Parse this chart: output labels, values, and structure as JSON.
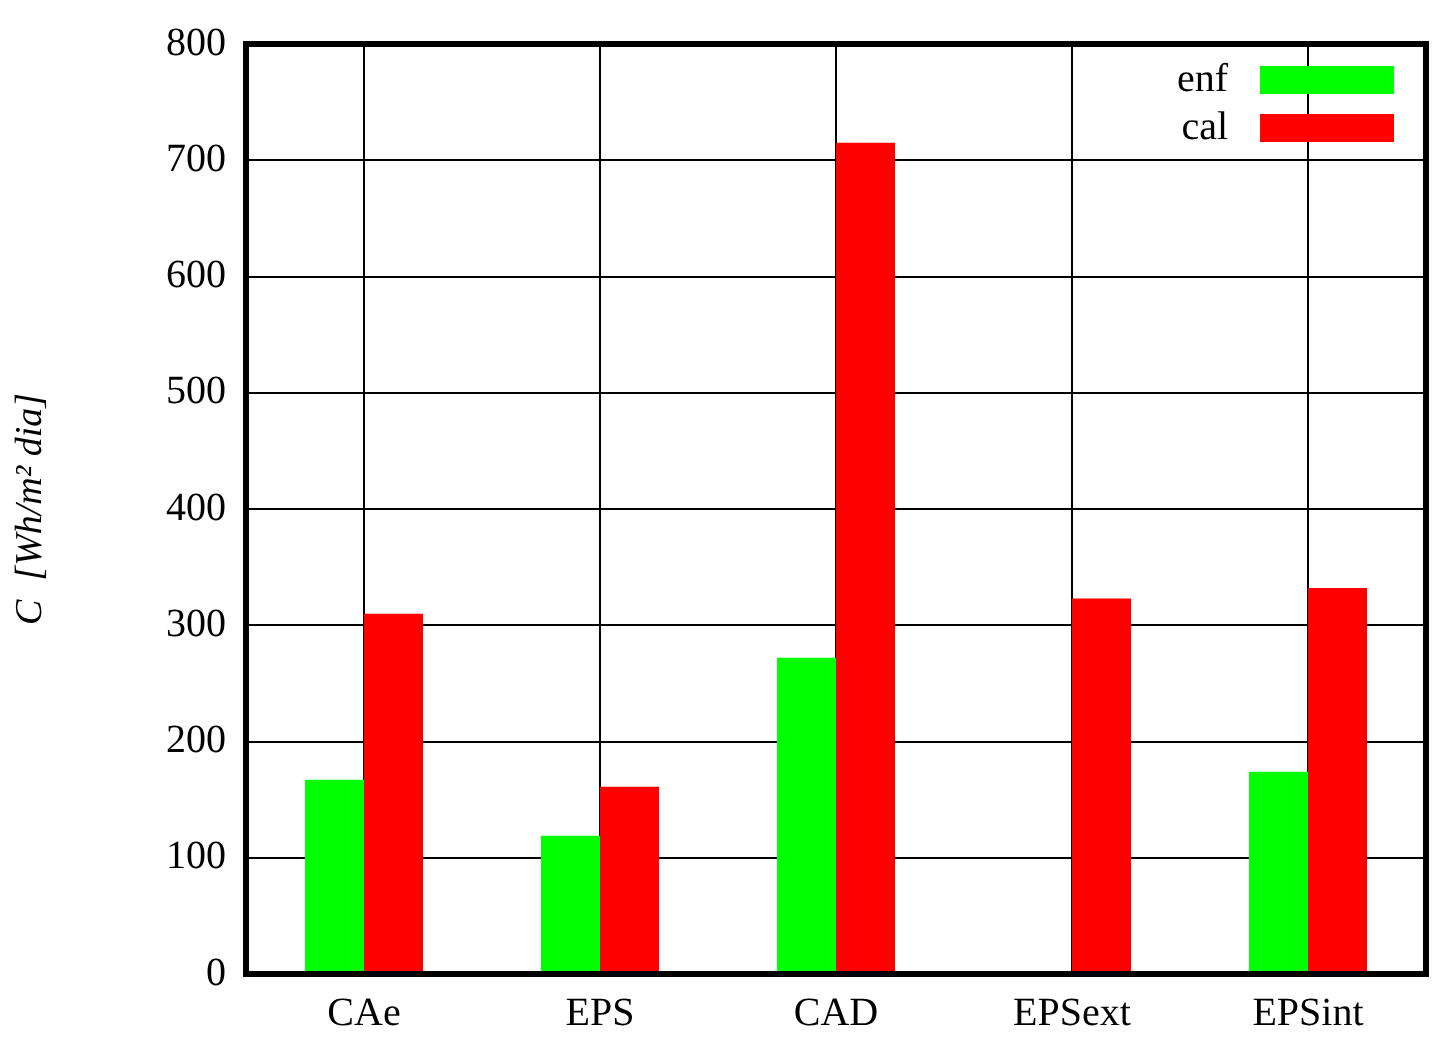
{
  "chart_data": {
    "type": "bar",
    "ylabel": "C  [Wh/m² dia]",
    "categories": [
      "CAe",
      "EPS",
      "CAD",
      "EPSext",
      "EPSint"
    ],
    "series": [
      {
        "name": "enf",
        "color": "#00ff00",
        "values": [
          167,
          119,
          272,
          0,
          174
        ]
      },
      {
        "name": "cal",
        "color": "#ff0000",
        "values": [
          310,
          161,
          715,
          323,
          332
        ]
      }
    ],
    "ylim": [
      0,
      800
    ],
    "yticks": [
      0,
      100,
      200,
      300,
      400,
      500,
      600,
      700,
      800
    ],
    "grid": true,
    "legend": "top right"
  }
}
